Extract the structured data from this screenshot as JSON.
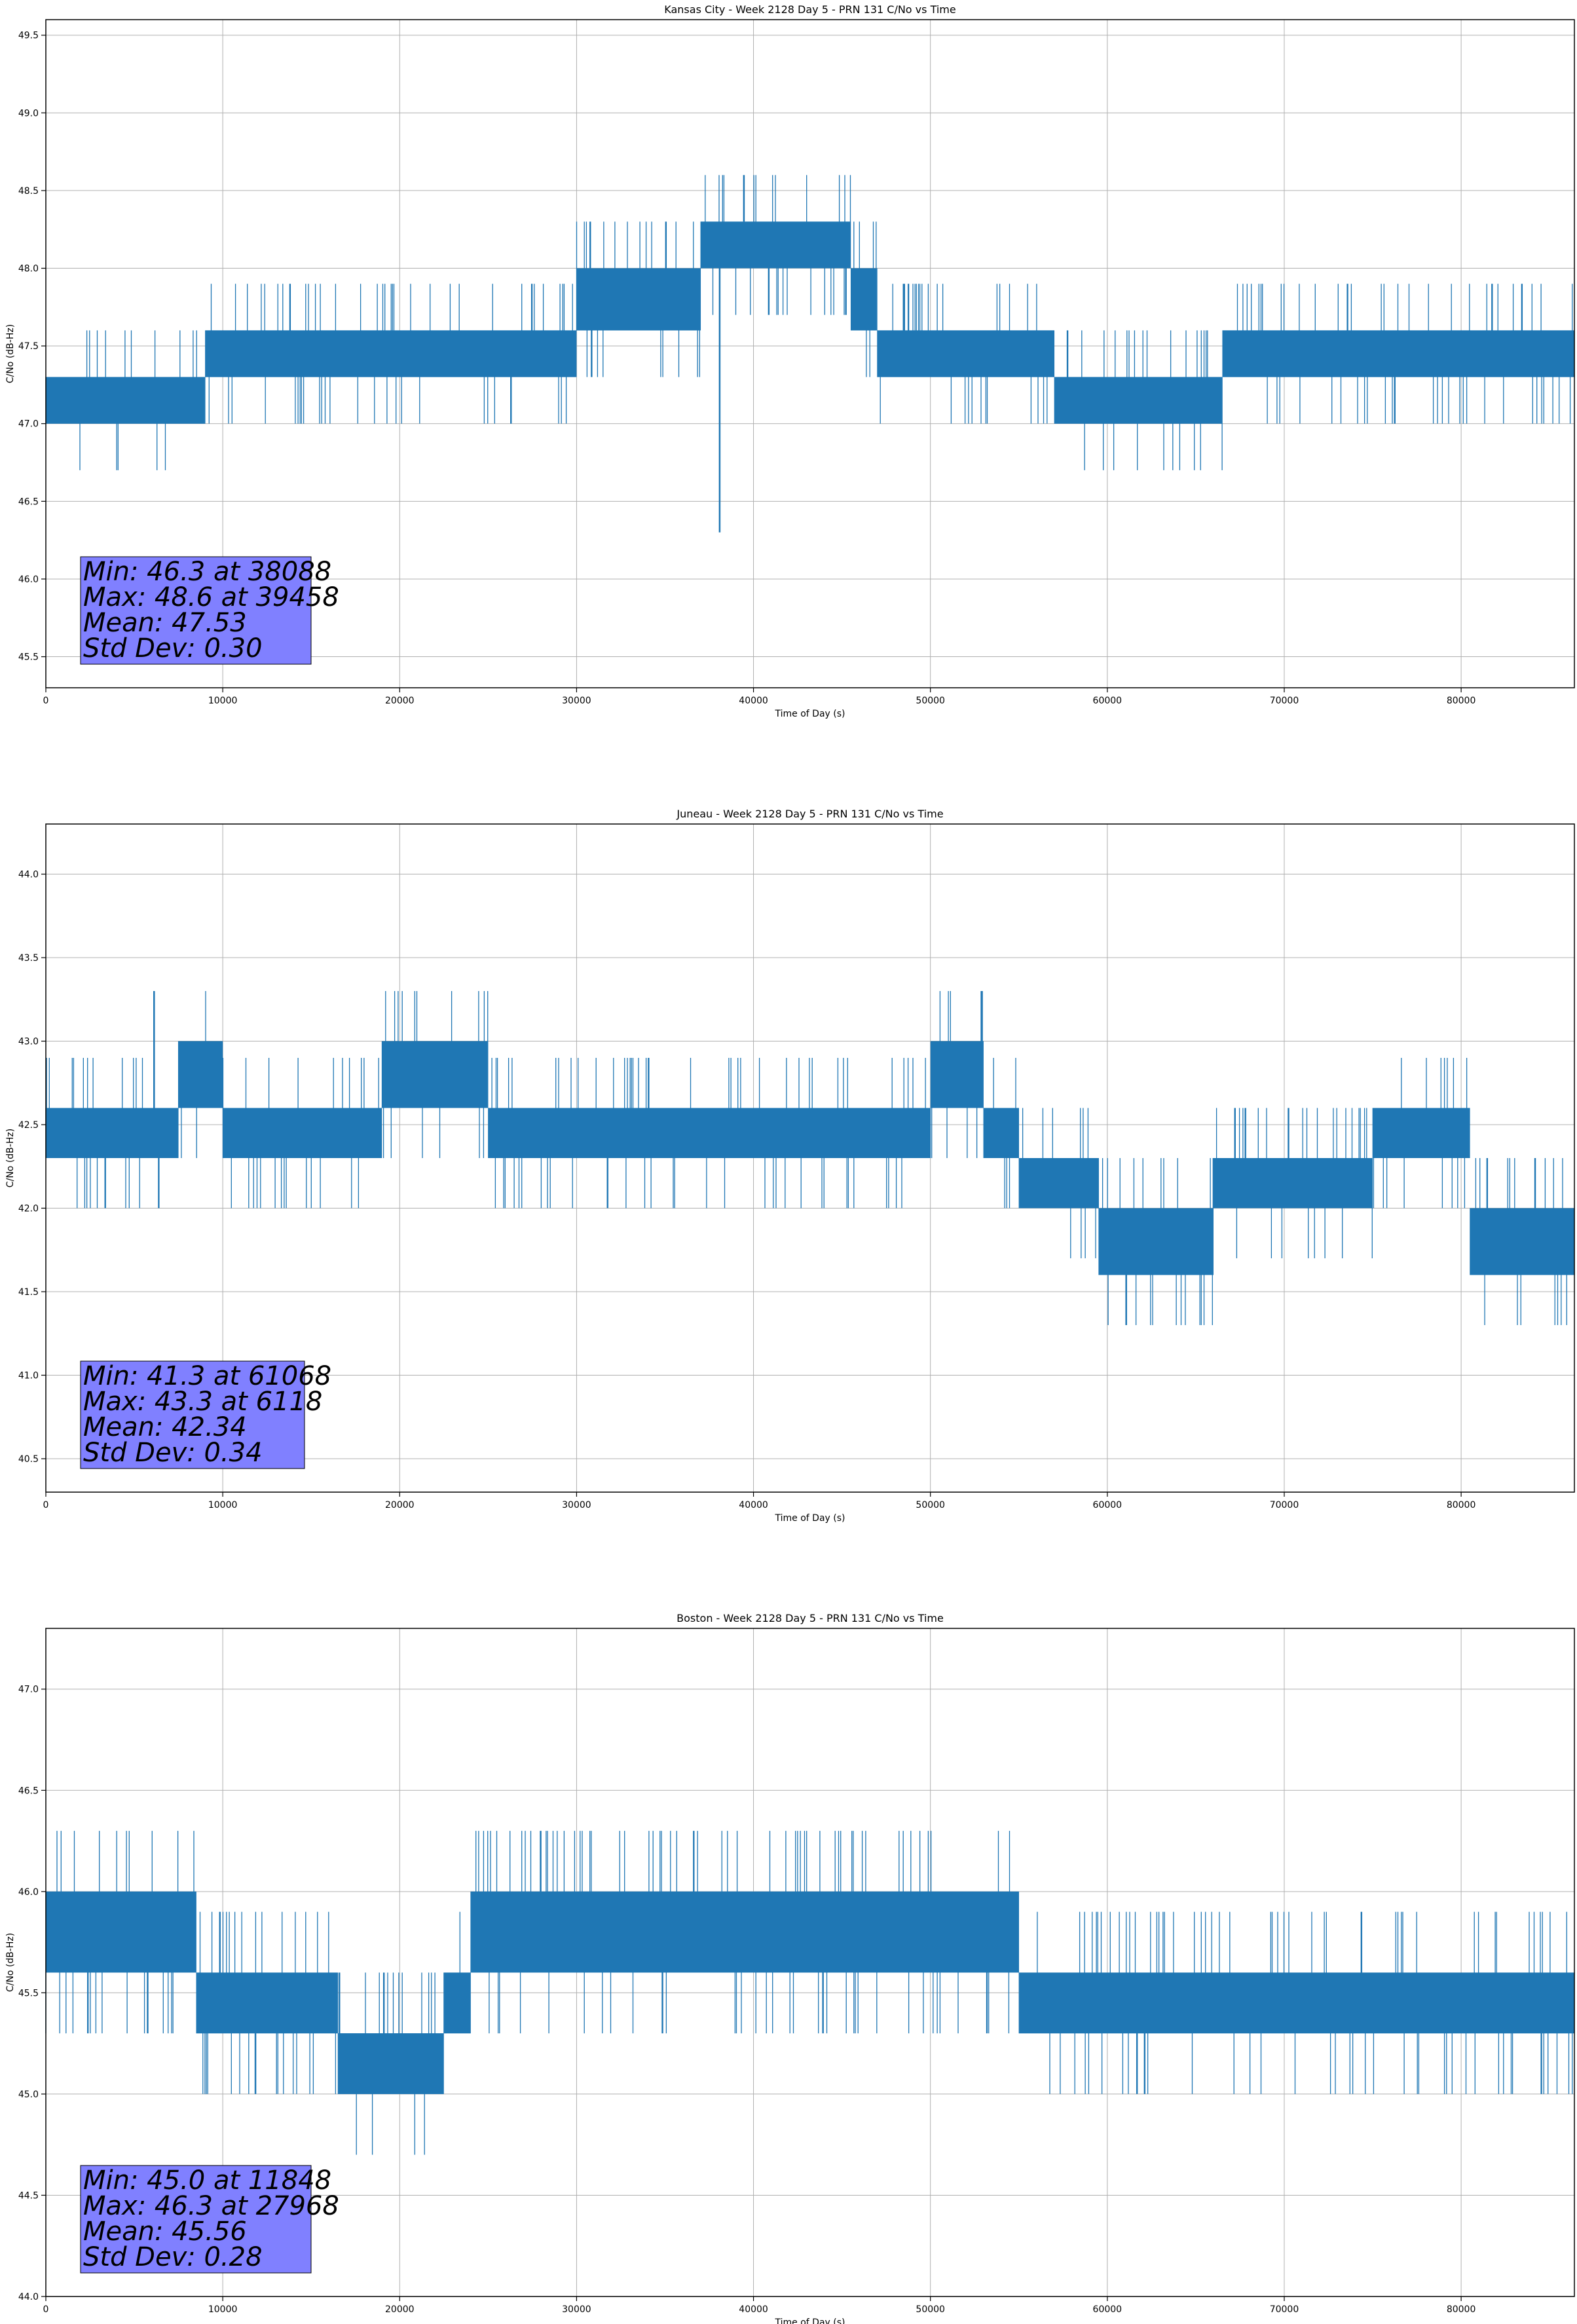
{
  "figure": {
    "background": "#ffffff",
    "line_color": "#1f77b4",
    "stats_box_color": "#8080ff"
  },
  "chart_data": [
    {
      "type": "line",
      "title": "Kansas City - Week 2128 Day 5 - PRN 131 C/No vs Time",
      "xlabel": "Time of Day (s)",
      "ylabel": "C/No (dB-Hz)",
      "xlim": [
        0,
        86400
      ],
      "ylim": [
        45.3,
        49.6
      ],
      "xticks": [
        0,
        10000,
        20000,
        30000,
        40000,
        50000,
        60000,
        70000,
        80000
      ],
      "yticks": [
        45.5,
        46.0,
        46.5,
        47.0,
        47.5,
        48.0,
        48.5,
        49.0,
        49.5
      ],
      "grid": true,
      "series": [
        {
          "color": "#1f77b4",
          "x": [
            0,
            7500,
            9000,
            20000,
            30000,
            37000,
            45500,
            47000,
            57000,
            66500,
            86400
          ],
          "y_low": [
            47.0,
            47.0,
            47.3,
            47.3,
            47.6,
            48.0,
            47.6,
            47.3,
            47.0,
            47.3,
            47.3
          ],
          "y_high": [
            47.3,
            47.3,
            47.6,
            47.6,
            48.0,
            48.3,
            48.0,
            47.6,
            47.3,
            47.6,
            47.6
          ]
        }
      ],
      "extremes": {
        "min": {
          "x": 38088,
          "y": 46.3
        },
        "max": {
          "x": 39458,
          "y": 48.6
        }
      },
      "stats_lines": [
        "Min: 46.3 at 38088",
        "Max: 48.6 at 39458",
        "Mean: 47.53",
        "Std Dev: 0.30"
      ]
    },
    {
      "type": "line",
      "title": "Juneau - Week 2128 Day 5 - PRN 131 C/No vs Time",
      "xlabel": "Time of Day (s)",
      "ylabel": "C/No (dB-Hz)",
      "xlim": [
        0,
        86400
      ],
      "ylim": [
        40.3,
        44.3
      ],
      "xticks": [
        0,
        10000,
        20000,
        30000,
        40000,
        50000,
        60000,
        70000,
        80000
      ],
      "yticks": [
        40.5,
        41.0,
        41.5,
        42.0,
        42.5,
        43.0,
        43.5,
        44.0
      ],
      "grid": true,
      "series": [
        {
          "color": "#1f77b4",
          "x": [
            0,
            7500,
            10000,
            19000,
            25000,
            50000,
            53000,
            55000,
            59500,
            66000,
            75000,
            80500,
            86400
          ],
          "y_low": [
            42.3,
            42.6,
            42.3,
            42.6,
            42.3,
            42.6,
            42.3,
            42.0,
            41.6,
            42.0,
            42.3,
            41.6,
            41.6
          ],
          "y_high": [
            42.6,
            43.0,
            42.6,
            43.0,
            42.6,
            43.0,
            42.6,
            42.3,
            42.0,
            42.3,
            42.6,
            42.0,
            42.0
          ]
        }
      ],
      "extremes": {
        "min": {
          "x": 61068,
          "y": 41.3
        },
        "max": {
          "x": 6118,
          "y": 43.3
        }
      },
      "stats_lines": [
        "Min: 41.3 at 61068",
        "Max: 43.3 at 6118",
        "Mean: 42.34",
        "Std Dev: 0.34"
      ]
    },
    {
      "type": "line",
      "title": "Boston - Week 2128 Day 5 - PRN 131 C/No vs Time",
      "xlabel": "Time of Day (s)",
      "ylabel": "C/No (dB-Hz)",
      "xlim": [
        0,
        86400
      ],
      "ylim": [
        44.0,
        47.3
      ],
      "xticks": [
        0,
        10000,
        20000,
        30000,
        40000,
        50000,
        60000,
        70000,
        80000
      ],
      "yticks": [
        44.0,
        44.5,
        45.0,
        45.5,
        46.0,
        46.5,
        47.0
      ],
      "grid": true,
      "series": [
        {
          "color": "#1f77b4",
          "x": [
            0,
            8500,
            16500,
            22500,
            24000,
            55000,
            57500,
            86400
          ],
          "y_low": [
            45.6,
            45.3,
            45.0,
            45.3,
            45.6,
            45.3,
            45.3,
            45.3
          ],
          "y_high": [
            46.0,
            45.6,
            45.3,
            45.6,
            46.0,
            45.6,
            45.6,
            45.6
          ]
        }
      ],
      "extremes": {
        "min": {
          "x": 11848,
          "y": 45.0
        },
        "max": {
          "x": 27968,
          "y": 46.3
        }
      },
      "stats_lines": [
        "Min: 45.0 at 11848",
        "Max: 46.3 at 27968",
        "Mean: 45.56",
        "Std Dev: 0.28"
      ]
    }
  ]
}
